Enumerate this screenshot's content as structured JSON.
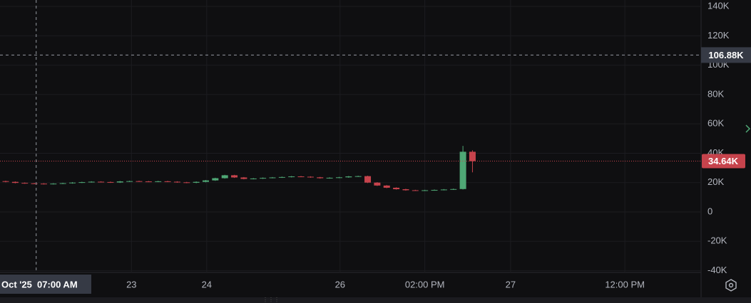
{
  "chart_data": {
    "type": "candlestick",
    "up_color": "#4fa775",
    "down_color": "#c6434c",
    "grid": true,
    "xlim": [
      -0.6,
      73
    ],
    "xticks": [
      {
        "value": 13.2,
        "label": "23"
      },
      {
        "value": 21.1,
        "label": "24"
      },
      {
        "value": 35.1,
        "label": "26"
      },
      {
        "value": 44,
        "label": "02:00 PM"
      },
      {
        "value": 53,
        "label": "27"
      },
      {
        "value": 65,
        "label": "12:00 PM"
      }
    ],
    "ylim": [
      -41180,
      144380
    ],
    "yticks": [
      {
        "value": -40000,
        "label": "-40K"
      },
      {
        "value": -20000,
        "label": "-20K"
      },
      0,
      {
        "value": 20000,
        "label": "20K"
      },
      {
        "value": 40000,
        "label": "40K"
      },
      {
        "value": 60000,
        "label": "60K"
      },
      {
        "value": 80000,
        "label": "80K"
      },
      {
        "value": 100000,
        "label": "100K"
      },
      {
        "value": 120000,
        "label": "120K"
      },
      {
        "value": 140000,
        "label": "140K"
      }
    ],
    "open": [
      21000,
      20500,
      19800,
      19500,
      19300,
      19000,
      19300,
      19600,
      20000,
      20300,
      20600,
      20400,
      20100,
      20800,
      21000,
      20800,
      20600,
      20900,
      20600,
      20200,
      19900,
      20500,
      21500,
      23000,
      25000,
      23500,
      22500,
      22800,
      23200,
      23500,
      23800,
      24200,
      24000,
      23600,
      23000,
      23300,
      23600,
      24200,
      24400,
      20000,
      18000,
      16500,
      15500,
      14800,
      14600,
      14800,
      15000,
      15300,
      15600,
      41000
    ],
    "high": [
      21300,
      20800,
      20100,
      19800,
      19600,
      19600,
      19900,
      20300,
      20600,
      20900,
      20900,
      20700,
      21100,
      21300,
      21300,
      21100,
      21200,
      21200,
      20900,
      20500,
      20800,
      21800,
      23300,
      25300,
      25300,
      23800,
      23100,
      23500,
      23800,
      24100,
      24500,
      24500,
      24300,
      23900,
      23600,
      23900,
      24500,
      24700,
      24700,
      20300,
      18300,
      16800,
      15800,
      15100,
      15100,
      15300,
      15600,
      15900,
      45000,
      42000
    ],
    "low": [
      20200,
      19500,
      19200,
      19000,
      18700,
      18700,
      19000,
      19300,
      19700,
      20000,
      20100,
      19800,
      19800,
      20500,
      20500,
      20300,
      20300,
      20300,
      19900,
      19600,
      19600,
      20200,
      21200,
      22700,
      23200,
      22200,
      22200,
      22500,
      22900,
      23200,
      23500,
      23700,
      23300,
      22700,
      22700,
      23000,
      23300,
      23900,
      19700,
      17700,
      16200,
      15200,
      14500,
      14300,
      14300,
      14500,
      14700,
      15000,
      15300,
      27000
    ],
    "close": [
      20500,
      19800,
      19500,
      19300,
      19000,
      19300,
      19600,
      20000,
      20300,
      20600,
      20400,
      20100,
      20800,
      21000,
      20800,
      20600,
      20900,
      20600,
      20200,
      19900,
      20500,
      21500,
      23000,
      25000,
      23500,
      22500,
      22800,
      23200,
      23500,
      23800,
      24200,
      24000,
      23600,
      23000,
      23300,
      23600,
      24200,
      24400,
      20000,
      18000,
      16500,
      15500,
      14800,
      14600,
      14800,
      15000,
      15300,
      15600,
      41000,
      34640
    ],
    "last_price": {
      "value": 34640,
      "label": "34.64K"
    },
    "crosshair": {
      "x": 3.2,
      "x_label": "Oct '25  07:00 AM",
      "y": 106880,
      "y_label": "106.88K"
    }
  }
}
